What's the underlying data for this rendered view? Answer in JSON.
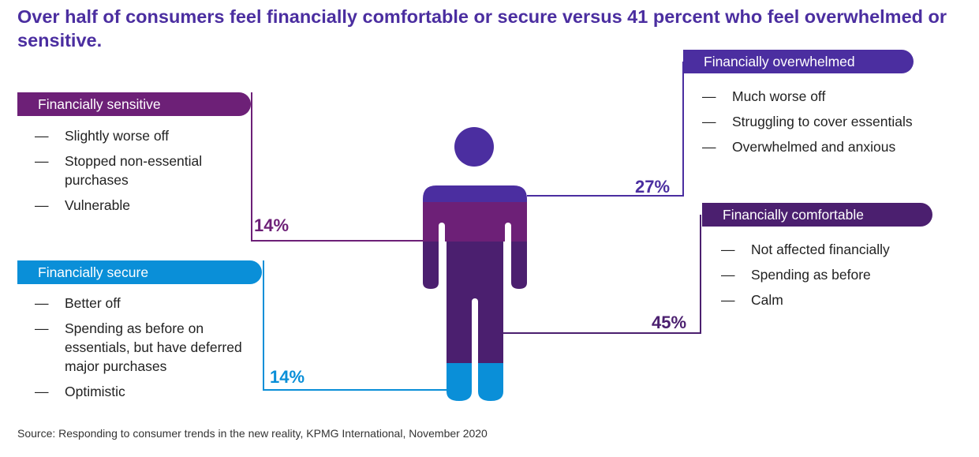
{
  "title": "Over half of consumers feel financially comfortable or secure versus 41 percent who feel overwhelmed or sensitive.",
  "colors": {
    "sensitive": "#6d2077",
    "secure": "#0a8fd8",
    "overwhelmed": "#4b2ea0",
    "comfortable": "#4b1f6f"
  },
  "segments": {
    "sensitive": {
      "label": "Financially sensitive",
      "percent": "14%",
      "items": [
        "Slightly worse off",
        "Stopped non-essential purchases",
        "Vulnerable"
      ]
    },
    "secure": {
      "label": "Financially secure",
      "percent": "14%",
      "items": [
        "Better off",
        "Spending as before on essentials, but have deferred major purchases",
        "Optimistic"
      ]
    },
    "overwhelmed": {
      "label": "Financially overwhelmed",
      "percent": "27%",
      "items": [
        "Much worse off",
        "Struggling to cover essentials",
        "Overwhelmed and anxious"
      ]
    },
    "comfortable": {
      "label": "Financially comfortable",
      "percent": "45%",
      "items": [
        "Not affected financially",
        "Spending as before",
        "Calm"
      ]
    }
  },
  "source": "Source: Responding to consumer trends in the new reality, KPMG International, November 2020"
}
